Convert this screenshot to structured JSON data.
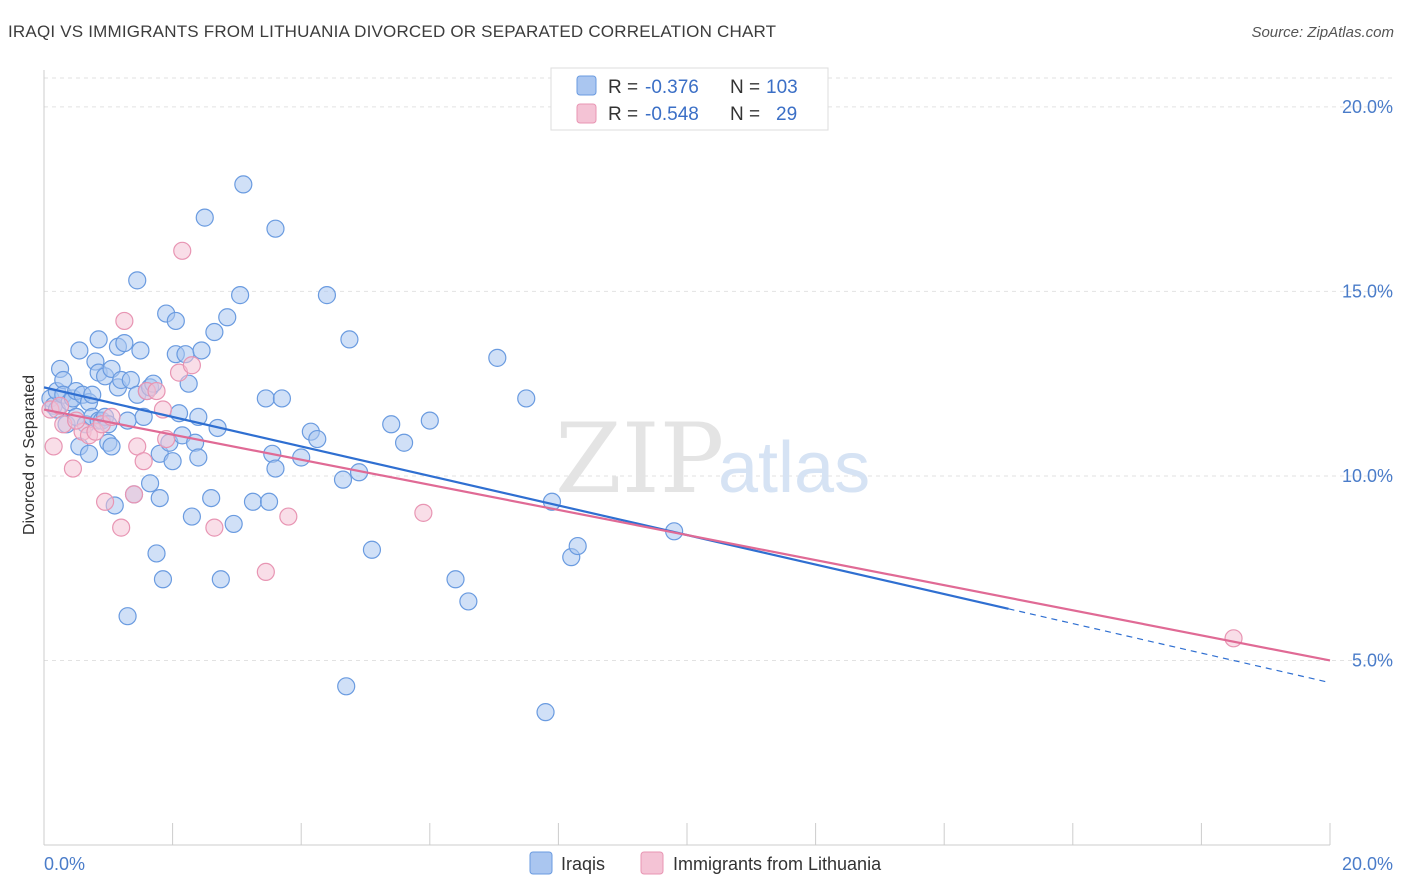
{
  "title": "IRAQI VS IMMIGRANTS FROM LITHUANIA DIVORCED OR SEPARATED CORRELATION CHART",
  "source": "Source: ZipAtlas.com",
  "watermark": {
    "zip": "ZIP",
    "atlas": "atlas"
  },
  "legend_top": [
    {
      "r_label": "R =",
      "r_value": "-0.376",
      "n_label": "N =",
      "n_value": "103"
    },
    {
      "r_label": "R =",
      "r_value": "-0.548",
      "n_label": "N =",
      "n_value": "29"
    }
  ],
  "chart_data": {
    "type": "scatter",
    "title": "IRAQI VS IMMIGRANTS FROM LITHUANIA DIVORCED OR SEPARATED CORRELATION CHART",
    "xlabel": "",
    "ylabel": "Divorced or Separated",
    "xlim": [
      0,
      20
    ],
    "ylim": [
      0,
      21
    ],
    "x_tick_labels": [
      "0.0%",
      "20.0%"
    ],
    "y_ticks": [
      5,
      10,
      15,
      20
    ],
    "y_tick_labels": [
      "5.0%",
      "10.0%",
      "15.0%",
      "20.0%"
    ],
    "grid": true,
    "legend_position": "bottom-center",
    "series": [
      {
        "name": "Iraqis",
        "color": "#6a9be0",
        "fill": "#aac6f0",
        "trend": {
          "x0": 0,
          "y0": 12.4,
          "x1": 15,
          "y1": 6.4,
          "dashed_to_x": 20,
          "dashed_to_y": 4.4,
          "color": "#2f6fd1"
        },
        "points": [
          [
            0.1,
            12.1
          ],
          [
            0.15,
            11.9
          ],
          [
            0.2,
            12.3
          ],
          [
            0.2,
            11.8
          ],
          [
            0.25,
            12.9
          ],
          [
            0.3,
            12.6
          ],
          [
            0.3,
            12.2
          ],
          [
            0.35,
            11.4
          ],
          [
            0.4,
            12.0
          ],
          [
            0.45,
            12.1
          ],
          [
            0.5,
            12.3
          ],
          [
            0.55,
            10.8
          ],
          [
            0.5,
            11.6
          ],
          [
            0.55,
            13.4
          ],
          [
            0.6,
            12.2
          ],
          [
            0.65,
            11.4
          ],
          [
            0.7,
            12.0
          ],
          [
            0.7,
            10.6
          ],
          [
            0.75,
            11.6
          ],
          [
            0.75,
            12.2
          ],
          [
            0.8,
            13.1
          ],
          [
            0.85,
            12.8
          ],
          [
            0.85,
            11.5
          ],
          [
            0.85,
            13.7
          ],
          [
            0.9,
            11.5
          ],
          [
            0.95,
            12.7
          ],
          [
            0.95,
            11.6
          ],
          [
            1.0,
            11.4
          ],
          [
            1.0,
            10.9
          ],
          [
            1.05,
            12.9
          ],
          [
            1.05,
            10.8
          ],
          [
            1.1,
            9.2
          ],
          [
            1.15,
            13.5
          ],
          [
            1.15,
            12.4
          ],
          [
            1.2,
            12.6
          ],
          [
            1.25,
            13.6
          ],
          [
            1.3,
            11.5
          ],
          [
            1.3,
            6.2
          ],
          [
            1.35,
            12.6
          ],
          [
            1.4,
            9.5
          ],
          [
            1.45,
            15.3
          ],
          [
            1.45,
            12.2
          ],
          [
            1.5,
            13.4
          ],
          [
            1.55,
            11.6
          ],
          [
            1.6,
            12.3
          ],
          [
            1.65,
            9.8
          ],
          [
            1.65,
            12.4
          ],
          [
            1.7,
            12.5
          ],
          [
            1.75,
            7.9
          ],
          [
            1.8,
            10.6
          ],
          [
            1.8,
            9.4
          ],
          [
            1.85,
            7.2
          ],
          [
            1.9,
            14.4
          ],
          [
            1.95,
            10.9
          ],
          [
            2.0,
            10.4
          ],
          [
            2.05,
            14.2
          ],
          [
            2.05,
            13.3
          ],
          [
            2.1,
            11.7
          ],
          [
            2.15,
            11.1
          ],
          [
            2.2,
            13.3
          ],
          [
            2.25,
            12.5
          ],
          [
            2.3,
            8.9
          ],
          [
            2.35,
            10.9
          ],
          [
            2.4,
            10.5
          ],
          [
            2.4,
            11.6
          ],
          [
            2.45,
            13.4
          ],
          [
            2.5,
            17.0
          ],
          [
            2.6,
            9.4
          ],
          [
            2.65,
            13.9
          ],
          [
            2.7,
            11.3
          ],
          [
            2.75,
            7.2
          ],
          [
            2.85,
            14.3
          ],
          [
            2.95,
            8.7
          ],
          [
            3.05,
            14.9
          ],
          [
            3.1,
            17.9
          ],
          [
            3.25,
            9.3
          ],
          [
            3.45,
            12.1
          ],
          [
            3.5,
            9.3
          ],
          [
            3.55,
            10.6
          ],
          [
            3.6,
            10.2
          ],
          [
            3.6,
            16.7
          ],
          [
            3.7,
            12.1
          ],
          [
            4.0,
            10.5
          ],
          [
            4.15,
            11.2
          ],
          [
            4.25,
            11.0
          ],
          [
            4.4,
            14.9
          ],
          [
            4.65,
            9.9
          ],
          [
            4.7,
            4.3
          ],
          [
            4.75,
            13.7
          ],
          [
            4.9,
            10.1
          ],
          [
            5.1,
            8.0
          ],
          [
            5.4,
            11.4
          ],
          [
            5.6,
            10.9
          ],
          [
            6.0,
            11.5
          ],
          [
            6.4,
            7.2
          ],
          [
            6.6,
            6.6
          ],
          [
            7.05,
            13.2
          ],
          [
            7.5,
            12.1
          ],
          [
            7.8,
            3.6
          ],
          [
            7.9,
            9.3
          ],
          [
            8.2,
            7.8
          ],
          [
            8.3,
            8.1
          ],
          [
            9.8,
            8.5
          ]
        ]
      },
      {
        "name": "Immigrants from Lithuania",
        "color": "#e895b3",
        "fill": "#f4c3d5",
        "trend": {
          "x0": 0,
          "y0": 11.8,
          "x1": 20,
          "y1": 5.0,
          "color": "#e06a95"
        },
        "points": [
          [
            0.1,
            11.8
          ],
          [
            0.15,
            10.8
          ],
          [
            0.3,
            11.4
          ],
          [
            0.45,
            10.2
          ],
          [
            0.6,
            11.2
          ],
          [
            0.7,
            11.1
          ],
          [
            0.8,
            11.2
          ],
          [
            0.9,
            11.4
          ],
          [
            0.95,
            9.3
          ],
          [
            1.05,
            11.6
          ],
          [
            1.2,
            8.6
          ],
          [
            1.25,
            14.2
          ],
          [
            1.4,
            9.5
          ],
          [
            1.45,
            10.8
          ],
          [
            1.55,
            10.4
          ],
          [
            1.6,
            12.3
          ],
          [
            1.75,
            12.3
          ],
          [
            1.85,
            11.8
          ],
          [
            1.9,
            11.0
          ],
          [
            2.1,
            12.8
          ],
          [
            2.15,
            16.1
          ],
          [
            2.3,
            13.0
          ],
          [
            2.65,
            8.6
          ],
          [
            3.45,
            7.4
          ],
          [
            3.8,
            8.9
          ],
          [
            5.9,
            9.0
          ],
          [
            18.5,
            5.6
          ],
          [
            0.25,
            11.9
          ],
          [
            0.5,
            11.5
          ]
        ]
      }
    ]
  },
  "bottom_legend": [
    "Iraqis",
    "Immigrants from Lithuania"
  ]
}
